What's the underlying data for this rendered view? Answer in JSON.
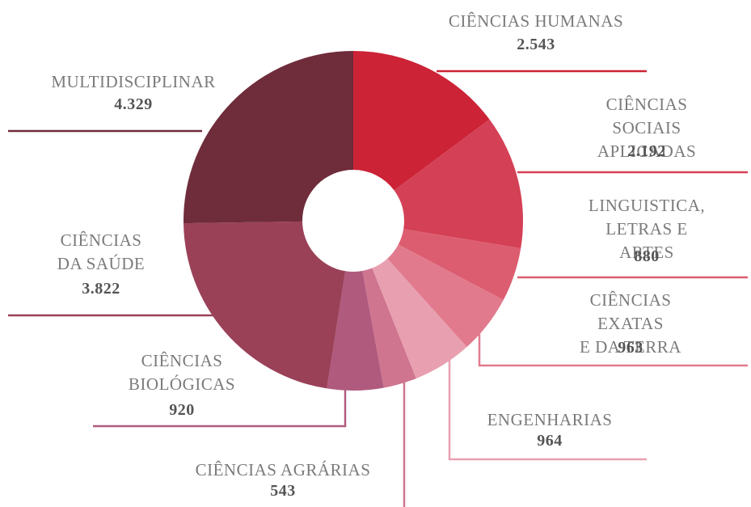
{
  "chart_data": {
    "type": "donut",
    "categories": [
      "CIÊNCIAS HUMANAS",
      "CIÊNCIAS SOCIAIS\nAPLICADAS",
      "LINGUISTICA,\nLETRAS E ARTES",
      "CIÊNCIAS EXATAS\nE DA TERRA",
      "ENGENHARIAS",
      "CIÊNCIAS AGRÁRIAS",
      "CIÊNCIAS\nBIOLÓGICAS",
      "CIÊNCIAS\nDA SAÚDE",
      "MULTIDISCIPLINAR"
    ],
    "values": [
      2543,
      2192,
      880,
      963,
      964,
      543,
      920,
      3822,
      4329
    ],
    "value_labels": [
      "2.543",
      "2.192",
      "880",
      "963",
      "964",
      "543",
      "920",
      "3.822",
      "4.329"
    ],
    "colors": [
      "#cc2336",
      "#d44055",
      "#dc5d70",
      "#e27a8e",
      "#e8a0b0",
      "#cf7590",
      "#b05a7e",
      "#9a4158",
      "#6f2c3a"
    ]
  }
}
